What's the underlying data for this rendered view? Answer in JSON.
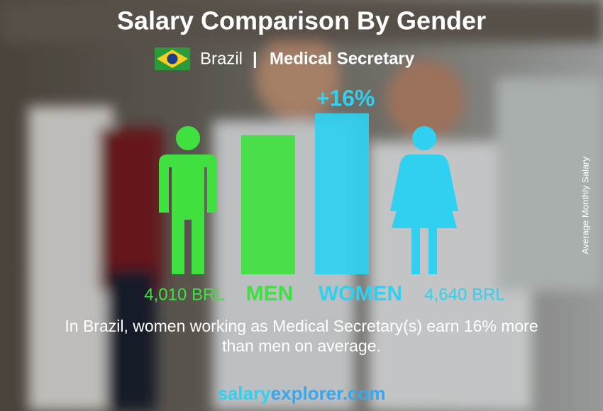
{
  "chart_data": {
    "type": "bar",
    "title": "Salary Comparison By Gender",
    "country": "Brazil",
    "separator": "|",
    "job": "Medical Secretary",
    "difference_label": "+16%",
    "categories": [
      "MEN",
      "WOMEN"
    ],
    "values": [
      4010,
      4640
    ],
    "value_labels": [
      "4,010 BRL",
      "4,640 BRL"
    ],
    "colors": [
      "#3fe03f",
      "#2fd0f0"
    ],
    "axis_label": "Average Monthly Salary",
    "description_lines": [
      "In Brazil, women working as Medical Secretary(s) earn 16% more",
      "than men on average."
    ],
    "footer": [
      "salary",
      "explorer.com"
    ],
    "footer_colors": [
      "#2fd0f0",
      "#36a8f0"
    ]
  }
}
